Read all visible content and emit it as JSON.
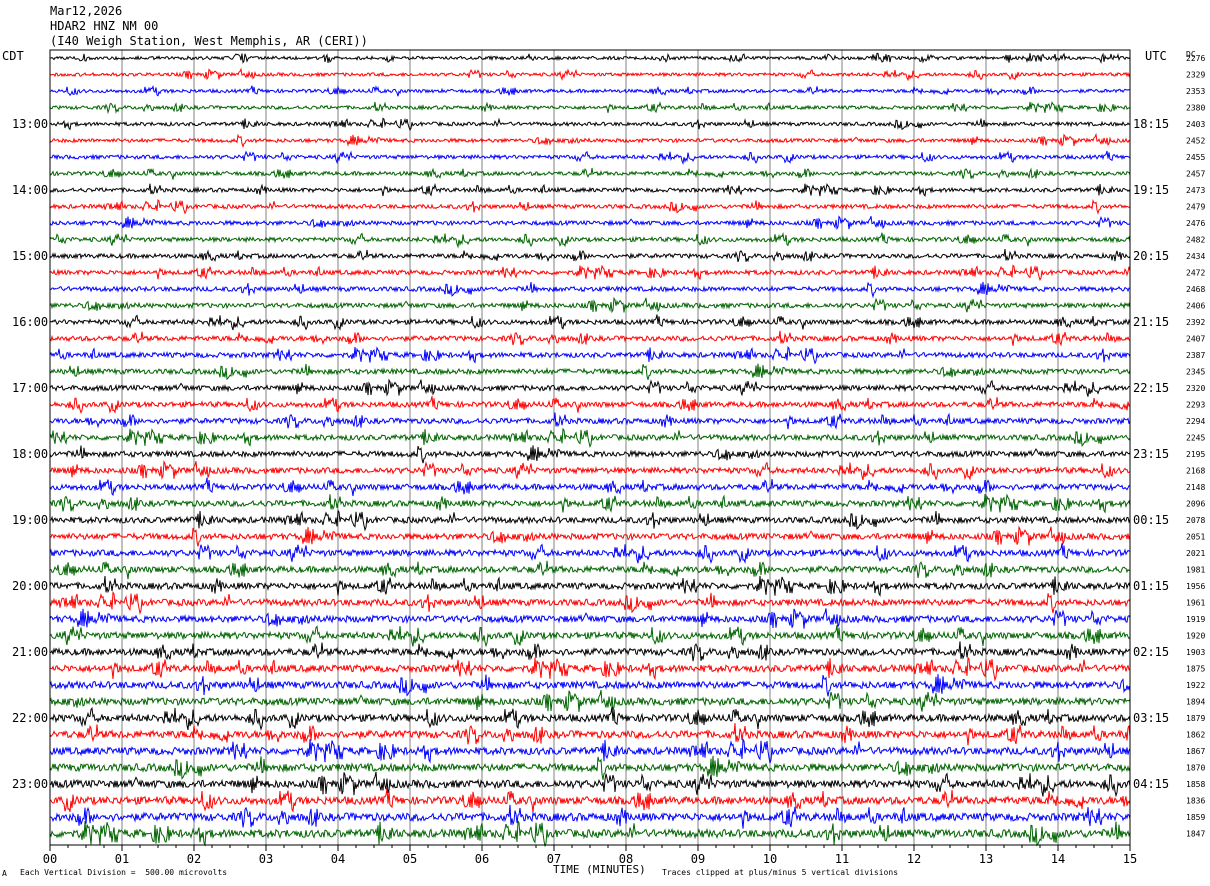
{
  "header": {
    "date": "Mar12,2026",
    "station": "HDAR2 HNZ NM 00",
    "location": "(I40 Weigh Station, West Memphis, AR (CERI))"
  },
  "left_tz": "CDT",
  "right_tz": "UTC",
  "dc_label": "DC",
  "footer": {
    "scale_note": "Each Vertical Division =  500.00 microvolts",
    "clip_note": "Traces clipped at plus/minus 5 vertical divisions",
    "corner_mark": "A"
  },
  "chart_data": {
    "type": "line",
    "xlabel": "TIME (MINUTES)",
    "x_ticks": [
      "00",
      "01",
      "02",
      "03",
      "04",
      "05",
      "06",
      "07",
      "08",
      "09",
      "10",
      "11",
      "12",
      "13",
      "14",
      "15"
    ],
    "xlim": [
      0,
      15
    ],
    "trace_colors": [
      "#000000",
      "#ff0000",
      "#0000ff",
      "#006400"
    ],
    "left_hour_labels": [
      "13:00",
      "14:00",
      "15:00",
      "16:00",
      "17:00",
      "18:00",
      "19:00",
      "20:00",
      "21:00",
      "22:00",
      "23:00"
    ],
    "right_hour_labels": [
      "18:15",
      "19:15",
      "20:15",
      "21:15",
      "22:15",
      "23:15",
      "00:15",
      "01:15",
      "02:15",
      "03:15",
      "04:15"
    ],
    "dc_offsets": [
      "2276",
      "2329",
      "2353",
      "2380",
      "2403",
      "2452",
      "2455",
      "2457",
      "2473",
      "2479",
      "2476",
      "2482",
      "2434",
      "2472",
      "2468",
      "2406",
      "2392",
      "2407",
      "2387",
      "2345",
      "2320",
      "2293",
      "2294",
      "2245",
      "2195",
      "2168",
      "2148",
      "2096",
      "2078",
      "2051",
      "2021",
      "1981",
      "1956",
      "1961",
      "1919",
      "1920",
      "1903",
      "1875",
      "1922",
      "1894",
      "1879",
      "1862",
      "1867",
      "1870",
      "1858",
      "1836",
      "1859",
      "1847"
    ]
  }
}
